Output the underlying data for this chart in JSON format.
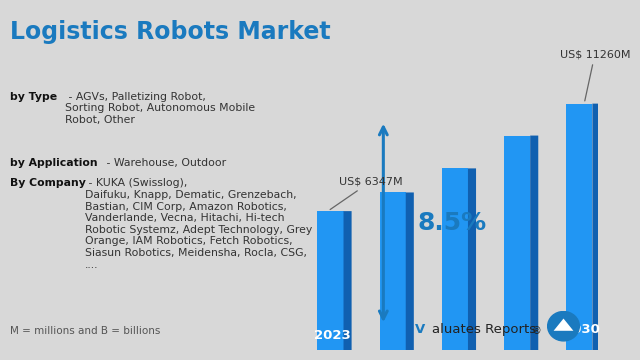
{
  "title": "Logistics Robots Market",
  "title_color": "#1a7abf",
  "title_fontsize": 17,
  "background_color": "#d8d8d8",
  "footnote": "M = millions and B = billions",
  "bar_values": [
    6347,
    7200,
    8300,
    9800,
    11260
  ],
  "bar_years": [
    "2023",
    "",
    "",
    "",
    "2030"
  ],
  "bar_color_face": "#2196F3",
  "bar_color_dark": "#1060b0",
  "bar_color_top": "#5bbcff",
  "bar_color_grad_bg": "#c8d8e8",
  "start_label": "US$ 6347M",
  "end_label": "US$ 11260M",
  "cagr_text": "8.5%",
  "arrow_color": "#1a7abf",
  "label_color": "#333333",
  "logo_v_color": "#1a7abf",
  "logo_text_color": "#222222",
  "logo_circle_color": "#1a7abf",
  "type_bold": "by Type",
  "type_rest": " - AGVs, Palletizing Robot,\nSorting Robot, Autonomous Mobile\nRobot, Other",
  "app_bold": "by Application",
  "app_rest": " - Warehouse, Outdoor",
  "comp_bold": "By Company",
  "comp_rest": " - KUKA (Swisslog),\nDaifuku, Knapp, Dematic, Grenzebach,\nBastian, CIM Corp, Amazon Robotics,\nVanderlande, Vecna, Hitachi, Hi-tech\nRobotic Systemz, Adept Technology, Grey\nOrange, IAM Robotics, Fetch Robotics,\nSiasun Robotics, Meidensha, Rocla, CSG,\n...."
}
